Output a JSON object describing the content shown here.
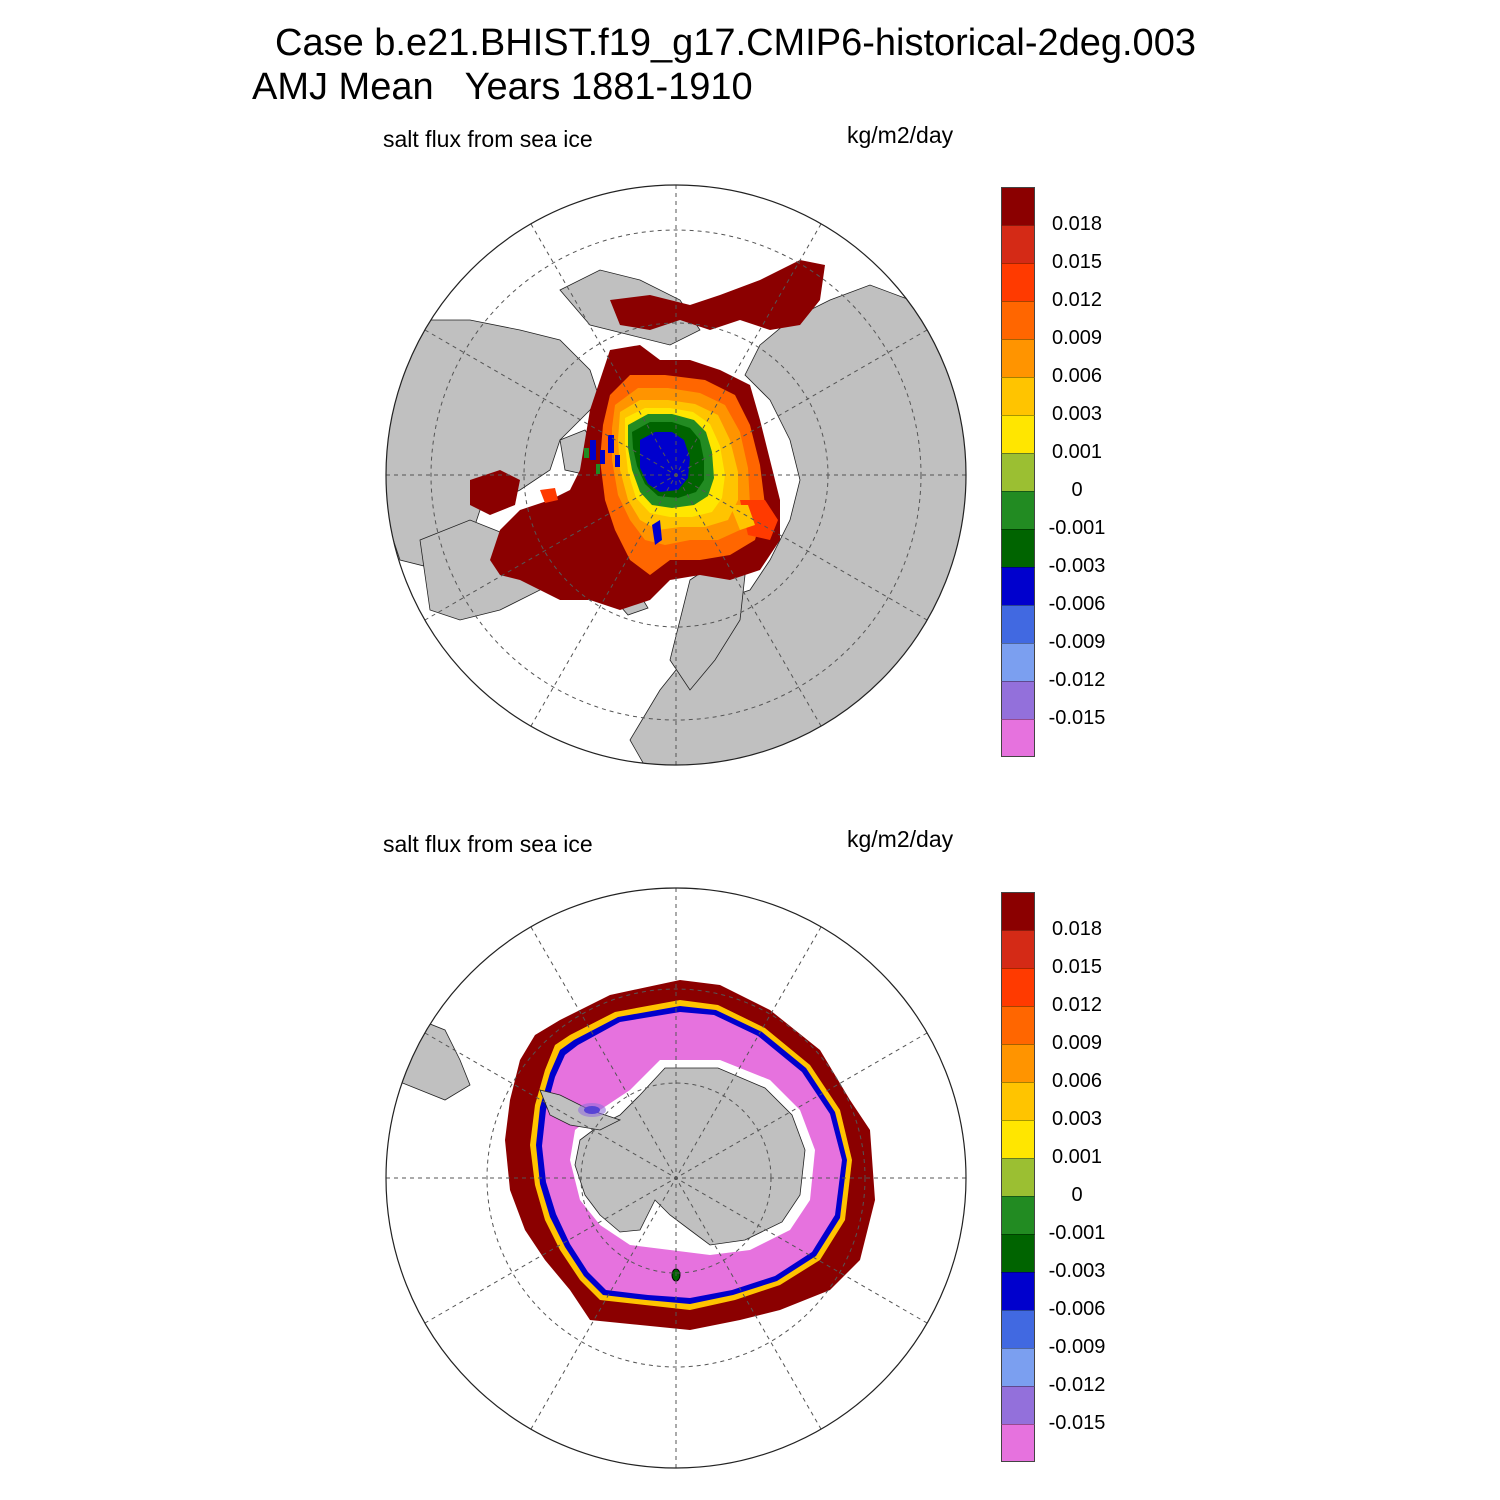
{
  "title": {
    "line1": "Case b.e21.BHIST.f19_g17.CMIP6-historical-2deg.003",
    "line2": "AMJ Mean   Years 1881-1910"
  },
  "panels": [
    {
      "id": "north",
      "hemisphere": "Arctic",
      "left_label": "salt flux from sea ice",
      "units": "kg/m2/day"
    },
    {
      "id": "south",
      "hemisphere": "Antarctic",
      "left_label": "salt flux from sea ice",
      "units": "kg/m2/day"
    }
  ],
  "colorbar": {
    "labels": [
      "0.018",
      "0.015",
      "0.012",
      "0.009",
      "0.006",
      "0.003",
      "0.001",
      "0",
      "-0.001",
      "-0.003",
      "-0.006",
      "-0.009",
      "-0.012",
      "-0.015"
    ],
    "colors": [
      "#8b0000",
      "#d42a16",
      "#ff3a00",
      "#ff6600",
      "#ff9400",
      "#ffc400",
      "#ffe600",
      "#9bbf32",
      "#228b22",
      "#006400",
      "#0000cd",
      "#4169e1",
      "#7b9ff0",
      "#9370db",
      "#e672de"
    ]
  },
  "colors": {
    "land": "#c0c0c0",
    "ocean": "#ffffff",
    "grid": "#555555"
  }
}
